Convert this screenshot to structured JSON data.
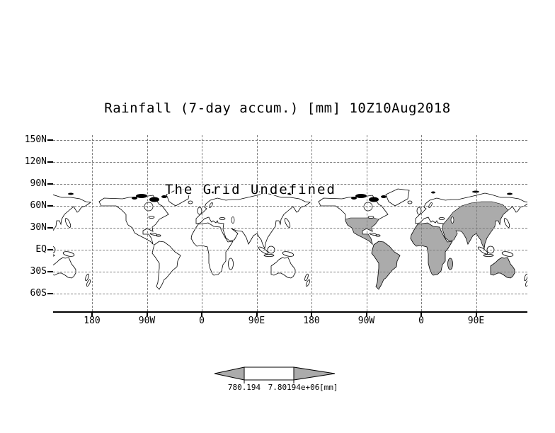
{
  "chart_data": {
    "type": "map",
    "projection": "equirectangular-latlon",
    "title": "Rainfall (7-day accum.) [mm] 10Z10Aug2018",
    "status_note": "The Grid Undefined",
    "y_axis": {
      "tick_labels": [
        "150N",
        "120N",
        "90N",
        "60N",
        "30N",
        "EQ",
        "30S",
        "60S"
      ]
    },
    "x_axis": {
      "tick_labels": [
        "180",
        "90W",
        "0",
        "90E",
        "180",
        "90W",
        "0",
        "90E"
      ]
    },
    "grid": "dashed",
    "map_cycles": 2,
    "land_outline_color": "#000000",
    "land_shade_color": "#ababab",
    "shaded_regions": [
      "South America",
      "Africa",
      "Australia",
      "South and East Asia",
      "Southern North America"
    ],
    "colorbar": {
      "shape": "double-arrow-bar",
      "segment_colors": [
        "#ababab",
        "#ffffff",
        "#ababab"
      ],
      "labels": [
        "780.194",
        "7.80194e+06"
      ],
      "unit_label": "[mm]"
    }
  }
}
